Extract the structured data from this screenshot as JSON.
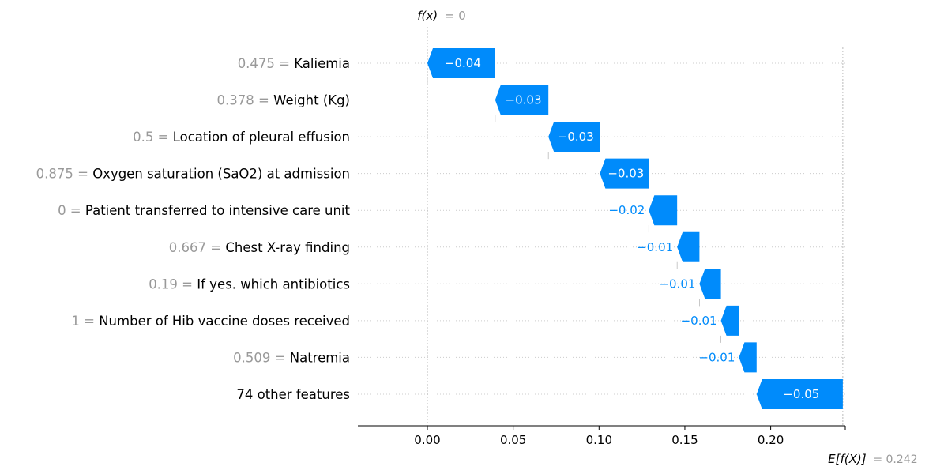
{
  "chart_data": {
    "type": "waterfall",
    "title": "",
    "fx_label": "f(x)",
    "fx_value": "= 0",
    "fx": 0,
    "ex_label": "E[f(X)]",
    "ex_value": "= 0.242",
    "base_value": 0.242,
    "xlim": [
      -0.04,
      0.242
    ],
    "x_ticks": [
      0.0,
      0.05,
      0.1,
      0.15,
      0.2
    ],
    "x_tick_labels": [
      "0.00",
      "0.05",
      "0.10",
      "0.15",
      "0.20"
    ],
    "features": [
      {
        "value": "0.475",
        "name": "Kaliemia",
        "start": 0.0,
        "end": 0.0395,
        "label": "−0.04"
      },
      {
        "value": "0.378",
        "name": "Weight (Kg)",
        "start": 0.0395,
        "end": 0.0705,
        "label": "−0.03"
      },
      {
        "value": "0.5",
        "name": "Location of pleural effusion",
        "start": 0.0705,
        "end": 0.1005,
        "label": "−0.03"
      },
      {
        "value": "0.875",
        "name": "Oxygen saturation (SaO2) at admission",
        "start": 0.1005,
        "end": 0.129,
        "label": "−0.03"
      },
      {
        "value": "0",
        "name": "Patient transferred to intensive care unit",
        "start": 0.129,
        "end": 0.1455,
        "label": "−0.02"
      },
      {
        "value": "0.667",
        "name": "Chest X-ray finding",
        "start": 0.1455,
        "end": 0.1585,
        "label": "−0.01"
      },
      {
        "value": "0.19",
        "name": "If yes. which antibiotics",
        "start": 0.1585,
        "end": 0.171,
        "label": "−0.01"
      },
      {
        "value": "1",
        "name": "Number of Hib vaccine doses received",
        "start": 0.171,
        "end": 0.1815,
        "label": "−0.01"
      },
      {
        "value": "0.509",
        "name": "Natremia",
        "start": 0.1815,
        "end": 0.1918,
        "label": "−0.01"
      },
      {
        "value": "",
        "name": "74 other features",
        "start": 0.1918,
        "end": 0.242,
        "label": "−0.05"
      }
    ],
    "colors": {
      "negative": "#008bfb",
      "label_gray": "#999999"
    }
  }
}
